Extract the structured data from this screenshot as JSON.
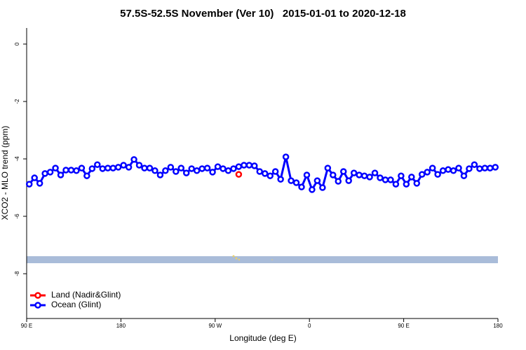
{
  "chart_data": {
    "type": "line",
    "title": "57.5S-52.5S November (Ver 10)   2015-01-01 to 2020-12-18",
    "x_label": "Longitude (deg E)",
    "y_label": "XCO2 - MLO trend (ppm)",
    "xlim": [
      90,
      540
    ],
    "ylim": [
      -9.56,
      0.56
    ],
    "xticks": [
      {
        "value": 90,
        "label": "90 E"
      },
      {
        "value": 180,
        "label": "180"
      },
      {
        "value": 270,
        "label": "90 W"
      },
      {
        "value": 360,
        "label": "0"
      },
      {
        "value": 450,
        "label": "90 E"
      },
      {
        "value": 540,
        "label": "180"
      }
    ],
    "yticks": [
      0,
      -2,
      -4,
      -6,
      -8
    ],
    "legend": "bottom-left",
    "series": [
      {
        "name": "Land (Nadir&Glint)",
        "color": "#ff0000",
        "x": [
          292.5
        ],
        "values": [
          -4.54
        ]
      },
      {
        "name": "Ocean (Glint)",
        "color": "#0000ff",
        "x": [
          92.5,
          97.5,
          102.5,
          107.5,
          112.5,
          117.5,
          122.5,
          127.5,
          132.5,
          137.5,
          142.5,
          147.5,
          152.5,
          157.5,
          162.5,
          167.5,
          172.5,
          177.5,
          182.5,
          187.5,
          192.5,
          197.5,
          202.5,
          207.5,
          212.5,
          217.5,
          222.5,
          227.5,
          232.5,
          237.5,
          242.5,
          247.5,
          252.5,
          257.5,
          262.5,
          267.5,
          272.5,
          277.5,
          282.5,
          287.5,
          292.5,
          297.5,
          302.5,
          307.5,
          312.5,
          317.5,
          322.5,
          327.5,
          332.5,
          337.5,
          342.5,
          347.5,
          352.5,
          357.5,
          362.5,
          367.5,
          372.5,
          377.5,
          382.5,
          387.5,
          392.5,
          397.5,
          402.5,
          407.5,
          412.5,
          417.5,
          422.5,
          427.5,
          432.5,
          437.5,
          442.5,
          447.5,
          452.5,
          457.5,
          462.5,
          467.5,
          472.5,
          477.5,
          482.5,
          487.5,
          492.5,
          497.5,
          502.5,
          507.5,
          512.5,
          517.5,
          522.5,
          527.5,
          532.5,
          537.5
        ],
        "values": [
          -4.88,
          -4.66,
          -4.85,
          -4.51,
          -4.46,
          -4.32,
          -4.56,
          -4.39,
          -4.39,
          -4.41,
          -4.32,
          -4.59,
          -4.34,
          -4.2,
          -4.34,
          -4.32,
          -4.32,
          -4.29,
          -4.22,
          -4.29,
          -4.02,
          -4.22,
          -4.32,
          -4.32,
          -4.41,
          -4.56,
          -4.41,
          -4.29,
          -4.44,
          -4.32,
          -4.49,
          -4.34,
          -4.41,
          -4.34,
          -4.32,
          -4.46,
          -4.27,
          -4.34,
          -4.41,
          -4.34,
          -4.27,
          -4.22,
          -4.22,
          -4.24,
          -4.44,
          -4.51,
          -4.59,
          -4.44,
          -4.71,
          -3.93,
          -4.76,
          -4.83,
          -4.98,
          -4.56,
          -5.07,
          -4.76,
          -5.0,
          -4.32,
          -4.56,
          -4.78,
          -4.44,
          -4.76,
          -4.49,
          -4.56,
          -4.59,
          -4.63,
          -4.49,
          -4.66,
          -4.73,
          -4.73,
          -4.88,
          -4.59,
          -4.88,
          -4.63,
          -4.85,
          -4.54,
          -4.46,
          -4.32,
          -4.54,
          -4.41,
          -4.37,
          -4.41,
          -4.32,
          -4.59,
          -4.34,
          -4.2,
          -4.34,
          -4.32,
          -4.32,
          -4.29
        ]
      }
    ]
  }
}
